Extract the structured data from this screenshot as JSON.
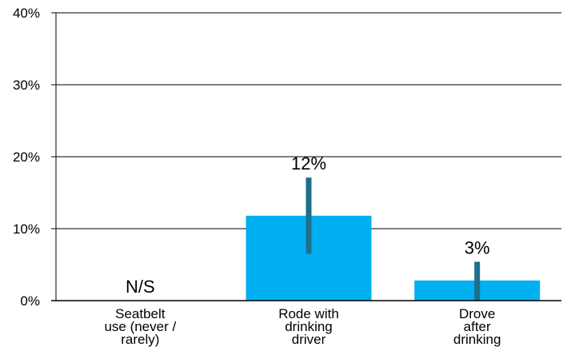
{
  "chart_data": {
    "type": "bar",
    "categories": [
      [
        "Seatbelt",
        "use (never /",
        "rarely)"
      ],
      [
        "Rode with",
        "drinking",
        "driver"
      ],
      [
        "Drove",
        "after",
        "drinking"
      ]
    ],
    "values": [
      null,
      11.8,
      2.8
    ],
    "data_labels": [
      "N/S",
      "12%",
      "3%"
    ],
    "error_bars": [
      null,
      [
        6.5,
        17.1
      ],
      [
        0,
        5.4
      ]
    ],
    "y_ticks": [
      "0%",
      "10%",
      "20%",
      "30%",
      "40%"
    ],
    "ylim": [
      0,
      40
    ],
    "title": "",
    "xlabel": "",
    "ylabel": "",
    "grid": true,
    "legend": "none",
    "colors": {
      "bar": "#00b0f0",
      "error_bar": "#1f6f8b",
      "axis": "#000000",
      "grid": "#000000",
      "text": "#000000"
    }
  }
}
